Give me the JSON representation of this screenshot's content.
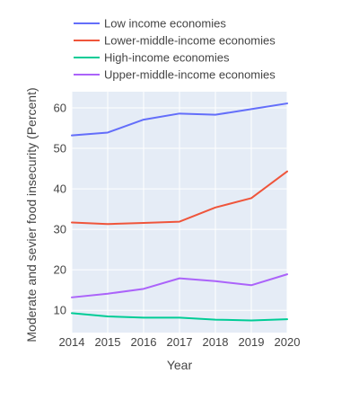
{
  "chart_data": {
    "type": "line",
    "xlabel": "Year",
    "ylabel": "Moderate and sevier food insecurity (Percent)",
    "x": [
      2014,
      2015,
      2016,
      2017,
      2018,
      2019,
      2020
    ],
    "xticks": [
      "2014",
      "2015",
      "2016",
      "2017",
      "2018",
      "2019",
      "2020"
    ],
    "yticks": [
      "10",
      "20",
      "30",
      "40",
      "50",
      "60"
    ],
    "ylim": [
      4.5,
      64
    ],
    "grid": true,
    "legend_position": "top",
    "series": [
      {
        "name": "Low income economies",
        "color": "#636efa",
        "values": [
          53.2,
          53.9,
          57.1,
          58.6,
          58.3,
          59.7,
          61.1
        ]
      },
      {
        "name": "Lower-middle-income economies",
        "color": "#ef553b",
        "values": [
          31.7,
          31.3,
          31.6,
          31.9,
          35.4,
          37.7,
          44.3
        ]
      },
      {
        "name": "High-income economies",
        "color": "#00cc96",
        "values": [
          9.3,
          8.5,
          8.2,
          8.2,
          7.7,
          7.5,
          7.8
        ]
      },
      {
        "name": "Upper-middle-income economies",
        "color": "#ab63fa",
        "values": [
          13.2,
          14.1,
          15.3,
          17.9,
          17.2,
          16.2,
          18.9
        ]
      }
    ],
    "plot_background": "#e5ecf6"
  }
}
